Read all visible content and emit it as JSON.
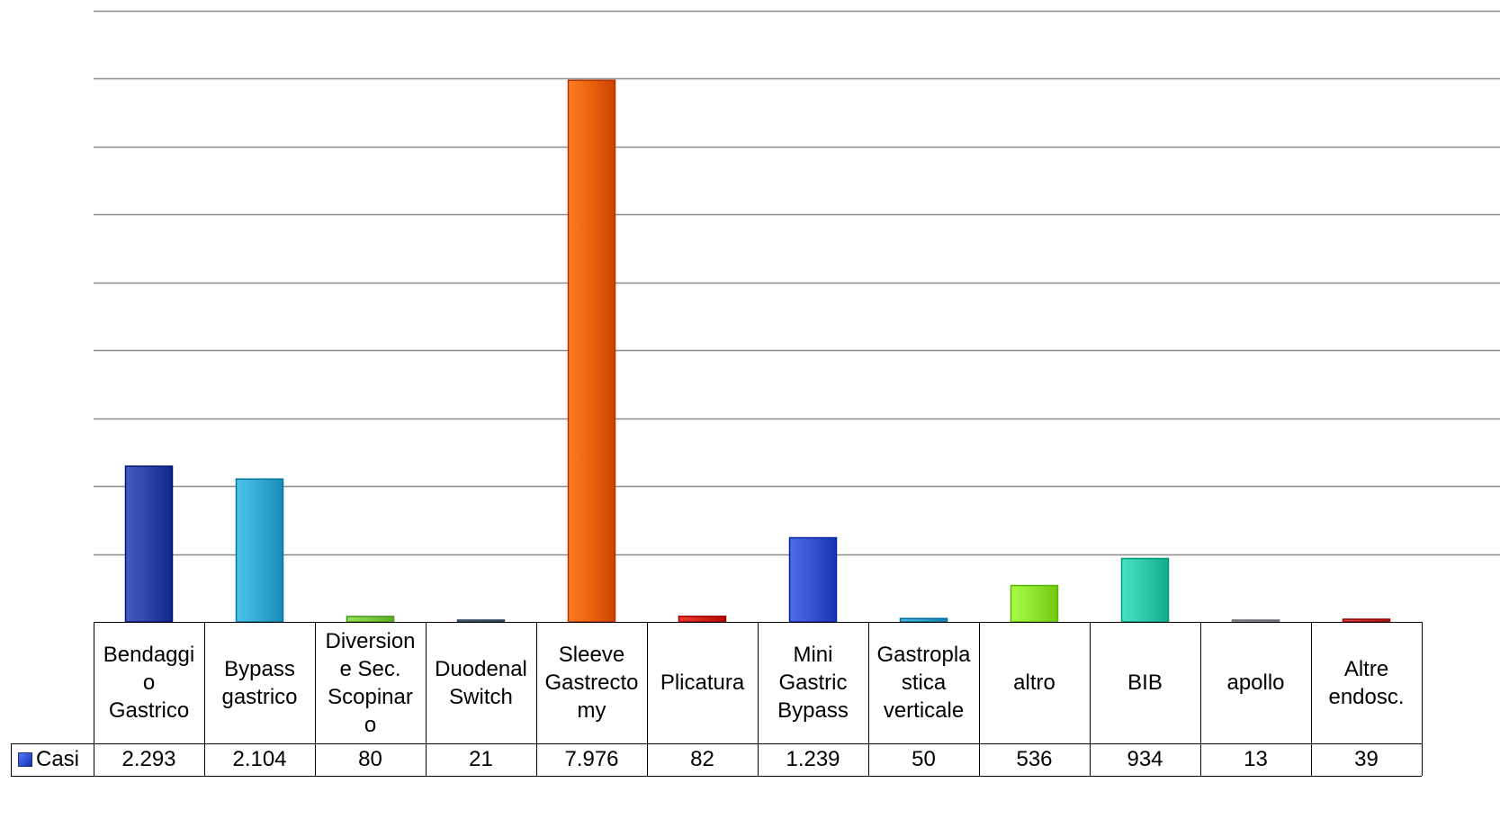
{
  "chart_data": {
    "type": "bar",
    "categories": [
      "Bendaggi\no\nGastrico",
      "Bypass\ngastrico",
      "Diversion\ne Sec.\nScopinar\no",
      "Duodenal\nSwitch",
      "Sleeve\nGastrecto\nmy",
      "Plicatura",
      "Mini\nGastric\nBypass",
      "Gastropla\nstica\nverticale",
      "altro",
      "BIB",
      "apollo",
      "Altre\nendosc."
    ],
    "series": [
      {
        "name": "Casi",
        "values": [
          2293,
          2104,
          80,
          21,
          7976,
          82,
          1239,
          50,
          536,
          934,
          13,
          39
        ],
        "display_values": [
          "2.293",
          "2.104",
          "80",
          "21",
          "7.976",
          "82",
          "1.239",
          "50",
          "536",
          "934",
          "13",
          "39"
        ]
      }
    ],
    "bar_colors": [
      "#2b44a6",
      "#34a9d2",
      "#7cc943",
      "#5a6e86",
      "#e8620c",
      "#d32418",
      "#3553d1",
      "#2fa0cd",
      "#8fe52d",
      "#2fc9aa",
      "#9a9aa8",
      "#c8302a"
    ],
    "legend_color": "#2f4fd0",
    "ylim": [
      0,
      9000
    ],
    "y_grid_step": 1000,
    "grid": true,
    "gridline_color": "#8c8c8c",
    "legend_placement": "data-table-left"
  }
}
